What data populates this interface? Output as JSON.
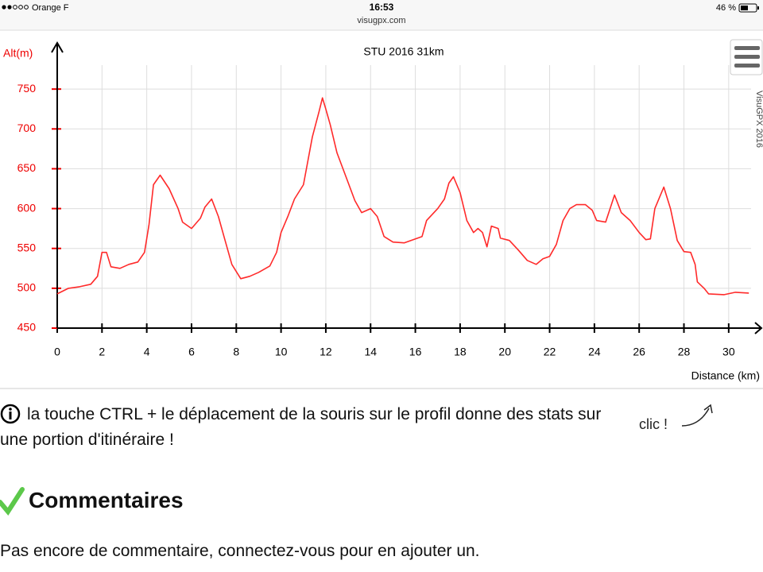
{
  "status_bar": {
    "carrier": "Orange F",
    "time": "16:53",
    "battery": "46 %"
  },
  "url": "visugpx.com",
  "chart_data": {
    "type": "line",
    "title": "STU 2016 31km",
    "y_label": "Alt(m)",
    "x_label": "Distance (km)",
    "watermark": "VisuGPX 2016",
    "color": "#ff2a2a",
    "grid": true,
    "xlim": [
      0,
      31
    ],
    "xticks": [
      0,
      2,
      4,
      6,
      8,
      10,
      12,
      14,
      16,
      18,
      20,
      22,
      24,
      26,
      28,
      30
    ],
    "ylim": [
      450,
      800
    ],
    "yticks": [
      450,
      500,
      550,
      600,
      650,
      700,
      750
    ],
    "x": [
      0,
      0.5,
      1,
      1.5,
      1.8,
      2,
      2.2,
      2.4,
      2.8,
      3.2,
      3.6,
      3.9,
      4.1,
      4.3,
      4.6,
      5,
      5.4,
      5.6,
      6,
      6.4,
      6.6,
      6.9,
      7.2,
      7.5,
      7.8,
      8.2,
      8.6,
      9,
      9.5,
      9.8,
      10,
      10.3,
      10.6,
      11,
      11.2,
      11.4,
      11.7,
      11.85,
      12,
      12.2,
      12.5,
      12.9,
      13.3,
      13.6,
      14,
      14.3,
      14.6,
      15,
      15.5,
      16,
      16.3,
      16.5,
      17,
      17.3,
      17.5,
      17.7,
      18,
      18.3,
      18.6,
      18.8,
      19,
      19.2,
      19.4,
      19.7,
      19.8,
      20.2,
      20.6,
      21,
      21.4,
      21.7,
      22,
      22.3,
      22.6,
      22.9,
      23.2,
      23.6,
      23.9,
      24.1,
      24.5,
      24.7,
      24.9,
      25.2,
      25.6,
      26,
      26.3,
      26.5,
      26.7,
      27.1,
      27.4,
      27.7,
      28,
      28.3,
      28.5,
      28.6,
      28.9,
      29.1,
      29.8,
      30.3,
      30.9
    ],
    "values": [
      493,
      500,
      502,
      505,
      515,
      545,
      545,
      527,
      525,
      530,
      533,
      545,
      580,
      630,
      642,
      625,
      600,
      583,
      575,
      588,
      602,
      612,
      590,
      560,
      530,
      512,
      515,
      520,
      528,
      545,
      570,
      590,
      612,
      630,
      660,
      690,
      722,
      739,
      725,
      705,
      670,
      640,
      610,
      595,
      600,
      590,
      565,
      558,
      557,
      562,
      565,
      585,
      600,
      612,
      632,
      640,
      620,
      585,
      570,
      575,
      570,
      552,
      578,
      575,
      563,
      560,
      548,
      535,
      530,
      537,
      540,
      555,
      585,
      600,
      605,
      605,
      598,
      585,
      583,
      600,
      617,
      595,
      585,
      570,
      561,
      562,
      600,
      627,
      600,
      560,
      546,
      545,
      530,
      508,
      500,
      493,
      492,
      495,
      494
    ]
  },
  "hint": {
    "text": "la touche CTRL + le déplacement de la souris sur le profil donne des stats sur une portion d'itinéraire !",
    "click": "clic !"
  },
  "comments": {
    "heading": "Commentaires",
    "empty": "Pas encore de commentaire, connectez-vous pour en ajouter un."
  }
}
